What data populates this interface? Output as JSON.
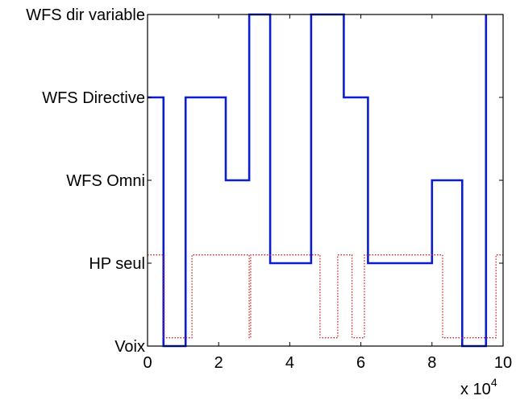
{
  "chart_data": {
    "type": "line",
    "title": "",
    "xlabel": "",
    "ylabel": "",
    "xlim": [
      0,
      100000
    ],
    "ylim": [
      0,
      4
    ],
    "x_ticks": [
      0,
      20000,
      40000,
      60000,
      80000,
      100000
    ],
    "x_tick_labels": [
      "0",
      "2",
      "4",
      "6",
      "8",
      "10"
    ],
    "x_exponent_label": {
      "base": "x 10",
      "exp": "4"
    },
    "y_ticks": [
      0,
      1,
      2,
      3,
      4
    ],
    "y_tick_labels": [
      "Voix",
      "HP seul",
      "WFS Omni",
      "WFS Directive",
      "WFS dir variable"
    ],
    "grid": false,
    "legend": "none",
    "series": [
      {
        "style": "solid",
        "color": "#0a1ed0",
        "points": [
          [
            0,
            3
          ],
          [
            4500,
            3
          ],
          [
            4500,
            0
          ],
          [
            10700,
            0
          ],
          [
            10700,
            3
          ],
          [
            22000,
            3
          ],
          [
            22000,
            2
          ],
          [
            28600,
            2
          ],
          [
            28600,
            4
          ],
          [
            34500,
            4
          ],
          [
            34500,
            1
          ],
          [
            46000,
            1
          ],
          [
            46000,
            4
          ],
          [
            55200,
            4
          ],
          [
            55200,
            3
          ],
          [
            62000,
            3
          ],
          [
            62000,
            1
          ],
          [
            80000,
            1
          ],
          [
            80000,
            2
          ],
          [
            88500,
            2
          ],
          [
            88500,
            0
          ],
          [
            95200,
            0
          ],
          [
            95200,
            4
          ]
        ]
      },
      {
        "style": "dotted",
        "color": "#d02020",
        "points": [
          [
            0,
            1.1
          ],
          [
            4700,
            1.1
          ],
          [
            4700,
            0.1
          ],
          [
            12500,
            0.1
          ],
          [
            12500,
            1.1
          ],
          [
            28600,
            1.1
          ],
          [
            28600,
            0.1
          ],
          [
            29000,
            0.1
          ],
          [
            29000,
            1.1
          ],
          [
            48500,
            1.1
          ],
          [
            48500,
            0.1
          ],
          [
            53500,
            0.1
          ],
          [
            53500,
            1.1
          ],
          [
            57500,
            1.1
          ],
          [
            57500,
            0.1
          ],
          [
            61000,
            0.1
          ],
          [
            61000,
            1.1
          ],
          [
            83000,
            1.1
          ],
          [
            83000,
            0.1
          ],
          [
            98000,
            0.1
          ],
          [
            98000,
            1.1
          ],
          [
            100000,
            1.1
          ]
        ]
      }
    ]
  }
}
